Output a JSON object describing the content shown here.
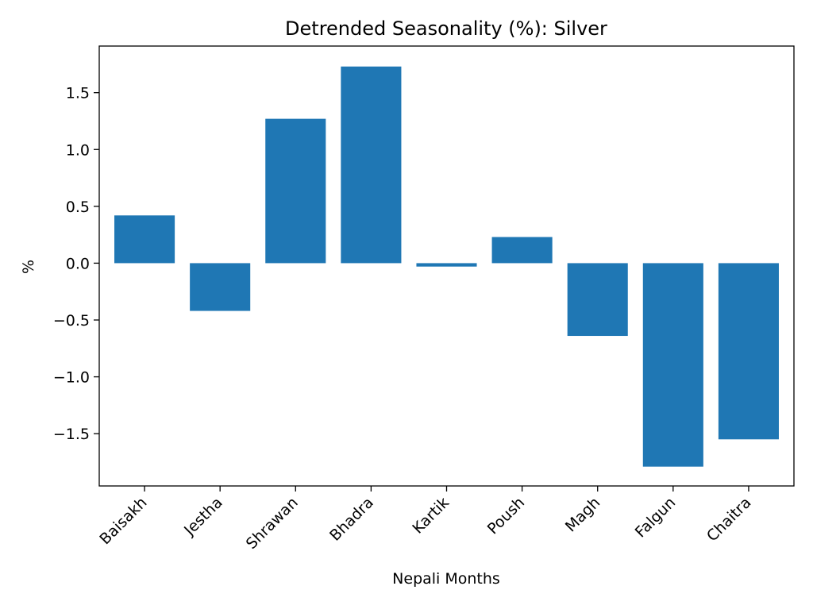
{
  "chart_data": {
    "type": "bar",
    "title": "Detrended Seasonality (%): Silver",
    "xlabel": "Nepali Months",
    "ylabel": "%",
    "categories": [
      "Baisakh",
      "Jestha",
      "Shrawan",
      "Bhadra",
      "Kartik",
      "Poush",
      "Magh",
      "Falgun",
      "Chaitra"
    ],
    "values": [
      0.42,
      -0.42,
      1.27,
      1.73,
      -0.03,
      0.23,
      -0.64,
      -1.79,
      -1.55
    ],
    "ylim": [
      -1.96,
      1.91
    ],
    "yticks": [
      -1.5,
      -1.0,
      -0.5,
      0.0,
      0.5,
      1.0,
      1.5
    ],
    "ytick_labels": [
      "−1.5",
      "−1.0",
      "−0.5",
      "0.0",
      "0.5",
      "1.0",
      "1.5"
    ],
    "bar_color": "#1f77b4",
    "grid": false,
    "legend": false
  }
}
